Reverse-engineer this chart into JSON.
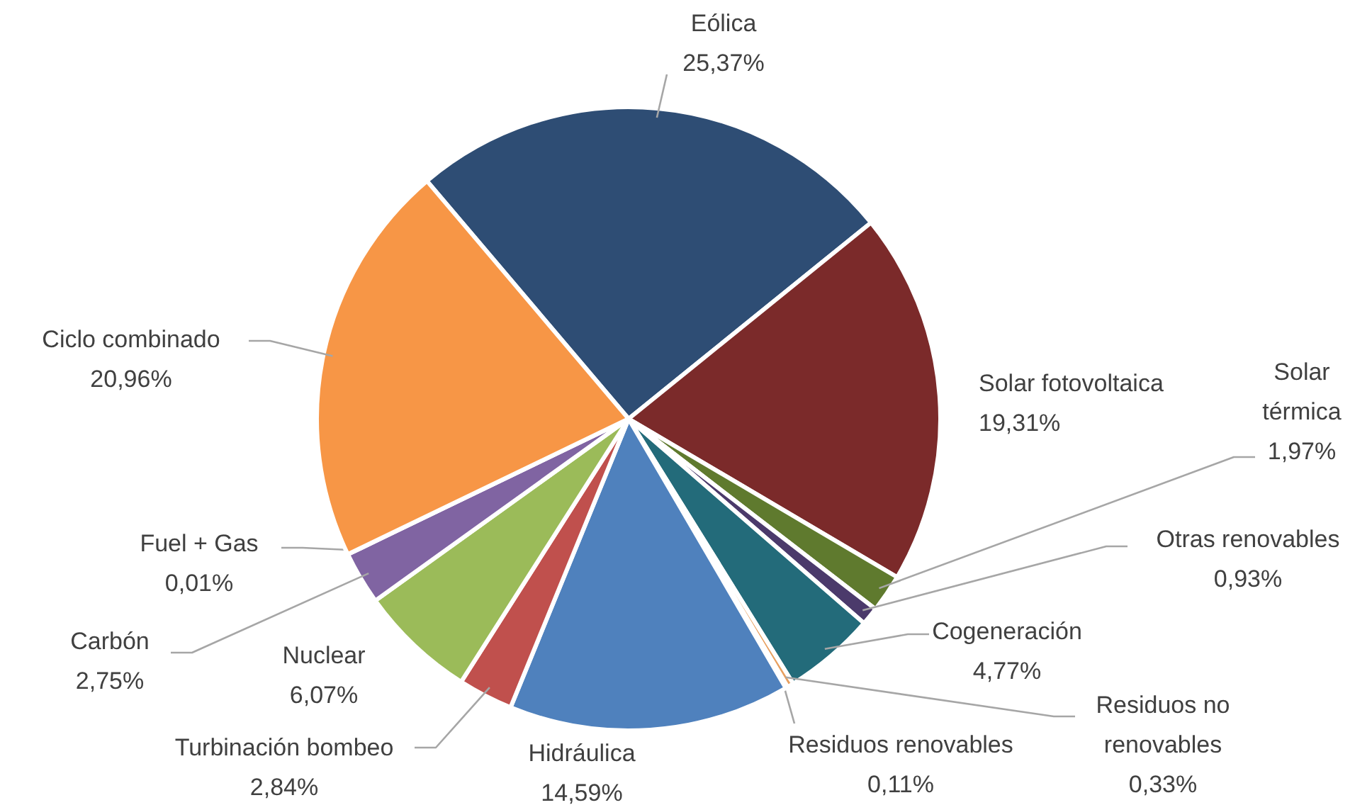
{
  "chart_data": {
    "type": "pie",
    "categories": [
      "Eólica",
      "Solar fotovoltaica",
      "Solar térmica",
      "Otras renovables",
      "Cogeneración",
      "Residuos no renovables",
      "Residuos renovables",
      "Hidráulica",
      "Turbinación bombeo",
      "Nuclear",
      "Carbón",
      "Fuel + Gas",
      "Ciclo combinado"
    ],
    "values": [
      25.37,
      19.31,
      1.97,
      0.93,
      4.77,
      0.33,
      0.11,
      14.59,
      2.84,
      6.07,
      2.75,
      0.01,
      20.96
    ],
    "value_labels": [
      "25,37%",
      "19,31%",
      "1,97%",
      "0,93%",
      "4,77%",
      "0,33%",
      "0,11%",
      "14,59%",
      "2,84%",
      "6,07%",
      "2,75%",
      "0,01%",
      "20,96%"
    ],
    "colors": [
      "#2e4d74",
      "#7b2a2a",
      "#5f7a2e",
      "#4b3a6b",
      "#236b7a",
      "#e8a060",
      "#c6d3e8",
      "#4f81bd",
      "#c0504d",
      "#9bbb59",
      "#8064a2",
      "#4bacc6",
      "#f79646"
    ]
  }
}
